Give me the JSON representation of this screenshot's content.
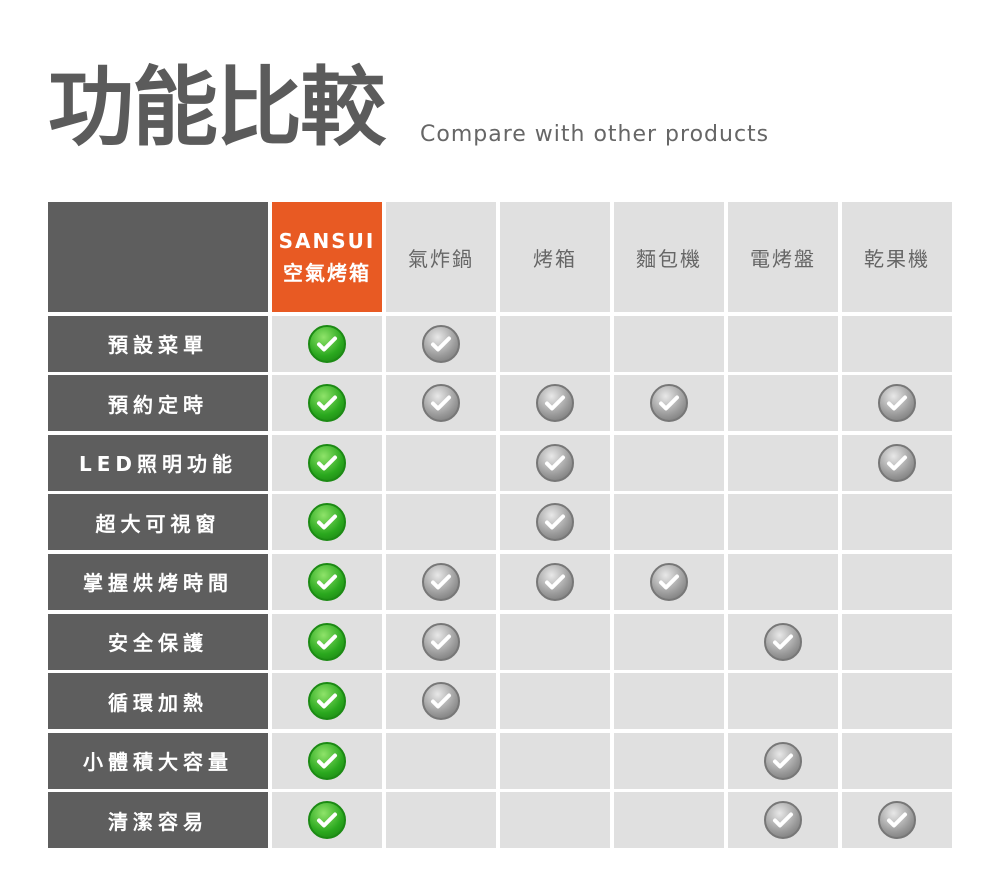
{
  "header": {
    "title": "功能比較",
    "subtitle": "Compare with other products"
  },
  "brand": {
    "line1": "SANSUI",
    "line2": "空氣烤箱",
    "color": "#e85a23"
  },
  "columns": [
    "氣炸鍋",
    "烤箱",
    "麵包機",
    "電烤盤",
    "乾果機"
  ],
  "rows": [
    {
      "feature": "預設菜單",
      "checks": [
        true,
        true,
        false,
        false,
        false,
        false
      ]
    },
    {
      "feature": "預約定時",
      "checks": [
        true,
        true,
        true,
        true,
        false,
        true
      ]
    },
    {
      "feature": "LED照明功能",
      "checks": [
        true,
        false,
        true,
        false,
        false,
        true
      ]
    },
    {
      "feature": "超大可視窗",
      "checks": [
        true,
        false,
        true,
        false,
        false,
        false
      ]
    },
    {
      "feature": "掌握烘烤時間",
      "checks": [
        true,
        true,
        true,
        true,
        false,
        false
      ]
    },
    {
      "feature": "安全保護",
      "checks": [
        true,
        true,
        false,
        false,
        true,
        false
      ]
    },
    {
      "feature": "循環加熱",
      "checks": [
        true,
        true,
        false,
        false,
        false,
        false
      ]
    },
    {
      "feature": "小體積大容量",
      "checks": [
        true,
        false,
        false,
        false,
        true,
        false
      ]
    },
    {
      "feature": "清潔容易",
      "checks": [
        true,
        false,
        false,
        false,
        true,
        true
      ]
    }
  ],
  "icons": {
    "brand_check": "check-circle-green-icon",
    "other_check": "check-circle-gray-icon"
  }
}
